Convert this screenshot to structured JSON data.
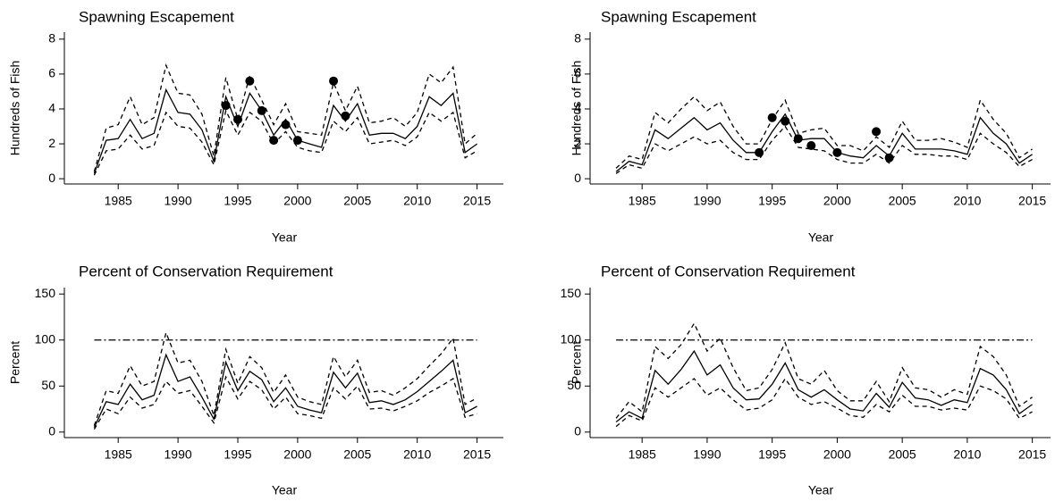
{
  "chart_data": [
    {
      "type": "line",
      "title": "Spawning Escapement",
      "xlabel": "Year",
      "ylabel": "Hundreds of Fish",
      "x": [
        1983,
        1984,
        1985,
        1986,
        1987,
        1988,
        1989,
        1990,
        1991,
        1992,
        1993,
        1994,
        1995,
        1996,
        1997,
        1998,
        1999,
        2000,
        2001,
        2002,
        2003,
        2004,
        2005,
        2006,
        2007,
        2008,
        2009,
        2010,
        2011,
        2012,
        2013,
        2014,
        2015
      ],
      "series": [
        {
          "color": "#000000",
          "dash": "solid",
          "values": [
            0.3,
            2.2,
            2.3,
            3.4,
            2.3,
            2.6,
            5.1,
            3.8,
            3.7,
            2.8,
            1.0,
            4.7,
            3.0,
            4.9,
            3.9,
            2.5,
            3.4,
            2.2,
            2.0,
            1.8,
            4.2,
            3.3,
            4.3,
            2.5,
            2.6,
            2.6,
            2.3,
            3.0,
            4.7,
            4.2,
            4.9,
            1.5,
            2.0
          ]
        },
        {
          "color": "#000000",
          "dash": "dashed",
          "values": [
            0.4,
            2.9,
            3.1,
            4.7,
            3.1,
            3.5,
            6.5,
            4.9,
            4.8,
            3.7,
            1.3,
            5.8,
            3.4,
            5.9,
            4.5,
            3.1,
            4.3,
            2.7,
            2.6,
            2.5,
            5.5,
            3.9,
            5.3,
            3.2,
            3.3,
            3.5,
            3.0,
            3.8,
            6.0,
            5.5,
            6.4,
            2.0,
            2.6
          ]
        },
        {
          "color": "#000000",
          "dash": "dashed",
          "values": [
            0.2,
            1.6,
            1.7,
            2.5,
            1.7,
            1.9,
            3.8,
            3.0,
            2.9,
            2.1,
            0.8,
            3.9,
            2.5,
            3.8,
            3.3,
            2.0,
            2.7,
            1.8,
            1.6,
            1.5,
            3.3,
            2.7,
            3.5,
            2.0,
            2.1,
            2.2,
            1.9,
            2.4,
            3.8,
            3.3,
            3.8,
            1.2,
            1.6
          ]
        }
      ],
      "points": {
        "color": "#000000",
        "x": [
          1994,
          1995,
          1996,
          1997,
          1998,
          1999,
          2000,
          2003,
          2004
        ],
        "y": [
          4.2,
          3.4,
          5.6,
          3.9,
          2.2,
          3.1,
          2.2,
          5.6,
          3.6
        ]
      },
      "xlim": [
        1980.5,
        2017.2
      ],
      "ylim": [
        -0.3,
        8.4
      ],
      "xticks": [
        1985,
        1990,
        1995,
        2000,
        2005,
        2010,
        2015
      ],
      "yticks": [
        0,
        2,
        4,
        6,
        8
      ]
    },
    {
      "type": "line",
      "title": "Spawning Escapement",
      "xlabel": "Year",
      "ylabel": "Hundreds of Fish",
      "x": [
        1983,
        1984,
        1985,
        1986,
        1987,
        1988,
        1989,
        1990,
        1991,
        1992,
        1993,
        1994,
        1995,
        1996,
        1997,
        1998,
        1999,
        2000,
        2001,
        2002,
        2003,
        2004,
        2005,
        2006,
        2007,
        2008,
        2009,
        2010,
        2011,
        2012,
        2013,
        2014,
        2015
      ],
      "series": [
        {
          "color": "#000000",
          "dash": "solid",
          "values": [
            0.4,
            1.0,
            0.8,
            2.8,
            2.3,
            2.9,
            3.5,
            2.8,
            3.2,
            2.2,
            1.5,
            1.5,
            2.7,
            3.7,
            2.2,
            2.3,
            2.3,
            1.5,
            1.3,
            1.2,
            1.9,
            1.3,
            2.6,
            1.7,
            1.7,
            1.7,
            1.6,
            1.4,
            3.5,
            2.6,
            2.0,
            0.9,
            1.4
          ]
        },
        {
          "color": "#000000",
          "dash": "dashed",
          "values": [
            0.6,
            1.3,
            1.1,
            3.8,
            3.2,
            4.0,
            4.7,
            3.9,
            4.4,
            3.0,
            2.0,
            2.0,
            3.4,
            4.5,
            2.6,
            2.8,
            2.9,
            1.9,
            1.9,
            1.6,
            2.4,
            1.8,
            3.3,
            2.2,
            2.2,
            2.3,
            2.1,
            1.8,
            4.5,
            3.4,
            2.6,
            1.2,
            1.7
          ]
        },
        {
          "color": "#000000",
          "dash": "dashed",
          "values": [
            0.3,
            0.8,
            0.6,
            2.0,
            1.6,
            2.0,
            2.4,
            2.0,
            2.2,
            1.5,
            1.1,
            1.1,
            2.2,
            3.0,
            1.8,
            1.7,
            1.6,
            1.1,
            0.9,
            0.9,
            1.4,
            0.9,
            1.9,
            1.4,
            1.4,
            1.3,
            1.3,
            1.1,
            2.6,
            2.0,
            1.5,
            0.7,
            1.1
          ]
        }
      ],
      "points": {
        "color": "#000000",
        "x": [
          1994,
          1995,
          1996,
          1997,
          1998,
          2000,
          2003,
          2004
        ],
        "y": [
          1.5,
          3.5,
          3.3,
          2.3,
          1.9,
          1.5,
          2.7,
          1.2
        ]
      },
      "xlim": [
        1981.0,
        2016.4
      ],
      "ylim": [
        -0.3,
        8.4
      ],
      "xticks": [
        1985,
        1990,
        1995,
        2000,
        2005,
        2010,
        2015
      ],
      "yticks": [
        0,
        2,
        4,
        6,
        8
      ]
    },
    {
      "type": "line",
      "title": "Percent of Conservation Requirement",
      "xlabel": "Year",
      "ylabel": "Percent",
      "x": [
        1983,
        1984,
        1985,
        1986,
        1987,
        1988,
        1989,
        1990,
        1991,
        1992,
        1993,
        1994,
        1995,
        1996,
        1997,
        1998,
        1999,
        2000,
        2001,
        2002,
        2003,
        2004,
        2005,
        2006,
        2007,
        2008,
        2009,
        2010,
        2011,
        2012,
        2013,
        2014,
        2015
      ],
      "series": [
        {
          "color": "#000000",
          "dash": "solid",
          "values": [
            5,
            33,
            30,
            52,
            35,
            40,
            84,
            55,
            60,
            38,
            14,
            76,
            45,
            66,
            57,
            33,
            48,
            28,
            24,
            21,
            65,
            48,
            64,
            32,
            34,
            30,
            35,
            44,
            55,
            66,
            78,
            21,
            28
          ]
        },
        {
          "color": "#000000",
          "dash": "dashed",
          "values": [
            7,
            45,
            42,
            72,
            50,
            55,
            108,
            75,
            78,
            55,
            18,
            90,
            53,
            82,
            70,
            43,
            62,
            38,
            33,
            30,
            82,
            60,
            78,
            43,
            45,
            40,
            48,
            58,
            72,
            85,
            102,
            30,
            37
          ]
        },
        {
          "color": "#000000",
          "dash": "dashed",
          "values": [
            3,
            25,
            20,
            38,
            26,
            30,
            55,
            42,
            45,
            28,
            10,
            60,
            36,
            55,
            46,
            25,
            38,
            20,
            18,
            15,
            48,
            36,
            50,
            25,
            26,
            23,
            28,
            34,
            43,
            50,
            58,
            16,
            20
          ]
        }
      ],
      "hline": {
        "value": 100,
        "color": "#000000",
        "dash": "dashdot"
      },
      "xlim": [
        1980.5,
        2017.2
      ],
      "ylim": [
        -6,
        157
      ],
      "xticks": [
        1985,
        1990,
        1995,
        2000,
        2005,
        2010,
        2015
      ],
      "yticks": [
        0,
        50,
        100,
        150
      ]
    },
    {
      "type": "line",
      "title": "Percent of Conservation Requirement",
      "xlabel": "Year",
      "ylabel": "Percent",
      "x": [
        1983,
        1984,
        1985,
        1986,
        1987,
        1988,
        1989,
        1990,
        1991,
        1992,
        1993,
        1994,
        1995,
        1996,
        1997,
        1998,
        1999,
        2000,
        2001,
        2002,
        2003,
        2004,
        2005,
        2006,
        2007,
        2008,
        2009,
        2010,
        2011,
        2012,
        2013,
        2014,
        2015
      ],
      "series": [
        {
          "color": "#000000",
          "dash": "solid",
          "values": [
            11,
            22,
            15,
            67,
            52,
            68,
            88,
            62,
            73,
            48,
            35,
            36,
            52,
            75,
            46,
            38,
            46,
            35,
            25,
            23,
            42,
            27,
            54,
            37,
            35,
            29,
            35,
            32,
            69,
            62,
            46,
            20,
            30
          ]
        },
        {
          "color": "#000000",
          "dash": "dashed",
          "values": [
            15,
            33,
            22,
            93,
            80,
            95,
            118,
            88,
            102,
            70,
            45,
            48,
            68,
            97,
            58,
            52,
            67,
            45,
            34,
            34,
            55,
            33,
            70,
            48,
            46,
            38,
            46,
            41,
            93,
            82,
            62,
            28,
            38
          ]
        },
        {
          "color": "#000000",
          "dash": "dashed",
          "values": [
            6,
            18,
            12,
            48,
            38,
            48,
            58,
            40,
            48,
            35,
            24,
            26,
            35,
            58,
            38,
            30,
            33,
            26,
            18,
            16,
            30,
            22,
            40,
            28,
            28,
            24,
            26,
            24,
            50,
            45,
            36,
            15,
            22
          ]
        }
      ],
      "hline": {
        "value": 100,
        "color": "#000000",
        "dash": "dashdot"
      },
      "xlim": [
        1981.0,
        2016.4
      ],
      "ylim": [
        -6,
        157
      ],
      "xticks": [
        1985,
        1990,
        1995,
        2000,
        2005,
        2010,
        2015
      ],
      "yticks": [
        0,
        50,
        100,
        150
      ]
    }
  ]
}
